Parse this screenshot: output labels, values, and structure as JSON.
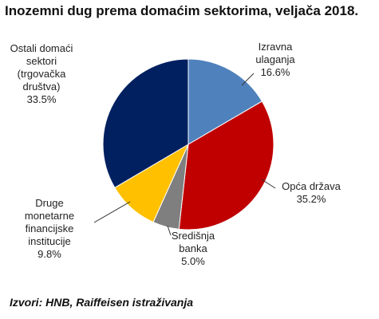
{
  "title": "Inozemni dug prema domaćim sektorima, veljača 2018.",
  "source": "Izvori: HNB, Raiffeisen istraživanja",
  "chart_data": {
    "type": "pie",
    "title": "Inozemni dug prema domaćim sektorima, veljača 2018.",
    "slices": [
      {
        "label_lines": [
          "Izravna",
          "ulaganja"
        ],
        "value": 16.6,
        "value_label": "16.6%",
        "color": "#4f81bd"
      },
      {
        "label_lines": [
          "Opća država"
        ],
        "value": 35.2,
        "value_label": "35.2%",
        "color": "#c00000"
      },
      {
        "label_lines": [
          "Središnja",
          "banka"
        ],
        "value": 5.0,
        "value_label": "5.0%",
        "color": "#7f7f7f"
      },
      {
        "label_lines": [
          "Druge",
          "monetarne",
          "financijske",
          "institucije"
        ],
        "value": 9.8,
        "value_label": "9.8%",
        "color": "#ffc000"
      },
      {
        "label_lines": [
          "Ostali domaći",
          "sektori",
          "(trgovačka",
          "društva)"
        ],
        "value": 33.5,
        "value_label": "33.5%",
        "color": "#002060"
      }
    ],
    "start": "12 o'clock",
    "direction": "clockwise",
    "legend": "none",
    "data_labels": "outside with leader lines"
  }
}
